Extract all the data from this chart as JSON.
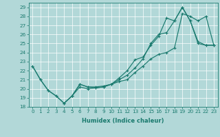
{
  "xlabel": "Humidex (Indice chaleur)",
  "bg_color": "#b2d8d8",
  "line_color": "#1a7a6e",
  "xlim": [
    -0.5,
    23.5
  ],
  "ylim": [
    18,
    29.5
  ],
  "yticks": [
    18,
    19,
    20,
    21,
    22,
    23,
    24,
    25,
    26,
    27,
    28,
    29
  ],
  "xticks": [
    0,
    1,
    2,
    3,
    4,
    5,
    6,
    7,
    8,
    9,
    10,
    11,
    12,
    13,
    14,
    15,
    16,
    17,
    18,
    19,
    20,
    21,
    22,
    23
  ],
  "line1_x": [
    0,
    1,
    2,
    3,
    4,
    5,
    6,
    7,
    8,
    9,
    10,
    11,
    12,
    13,
    14,
    15,
    16,
    17,
    18,
    19,
    20,
    21,
    22,
    23
  ],
  "line1_y": [
    22.5,
    21.0,
    19.8,
    19.2,
    18.4,
    19.2,
    20.2,
    20.0,
    20.1,
    20.2,
    20.5,
    20.8,
    21.0,
    21.8,
    22.5,
    23.3,
    23.8,
    24.0,
    24.5,
    28.3,
    28.0,
    27.5,
    28.0,
    24.8
  ],
  "line2_x": [
    0,
    1,
    2,
    3,
    4,
    5,
    6,
    7,
    8,
    9,
    10,
    11,
    12,
    13,
    14,
    15,
    16,
    17,
    18,
    19,
    20,
    21,
    22,
    23
  ],
  "line2_y": [
    22.5,
    21.0,
    19.8,
    19.2,
    18.4,
    19.2,
    20.5,
    20.2,
    20.2,
    20.3,
    20.5,
    21.0,
    21.5,
    22.3,
    23.3,
    25.0,
    26.0,
    26.2,
    27.5,
    29.0,
    27.5,
    25.2,
    24.8,
    24.8
  ],
  "line3_x": [
    4,
    5,
    6,
    7,
    8,
    9,
    10,
    11,
    12,
    13,
    14,
    15,
    16,
    17,
    18,
    19,
    20,
    21,
    22,
    23
  ],
  "line3_y": [
    18.4,
    19.2,
    20.5,
    20.2,
    20.1,
    20.2,
    20.5,
    21.2,
    22.0,
    23.2,
    23.5,
    24.8,
    25.8,
    27.8,
    27.5,
    29.0,
    27.5,
    25.0,
    24.8,
    24.8
  ],
  "xlabel_fontsize": 6.0,
  "tick_fontsize": 5.2,
  "grid_color": "#ffffff",
  "grid_lw": 0.5,
  "line_lw": 0.85,
  "marker_size": 2.5,
  "marker_lw": 0.8
}
